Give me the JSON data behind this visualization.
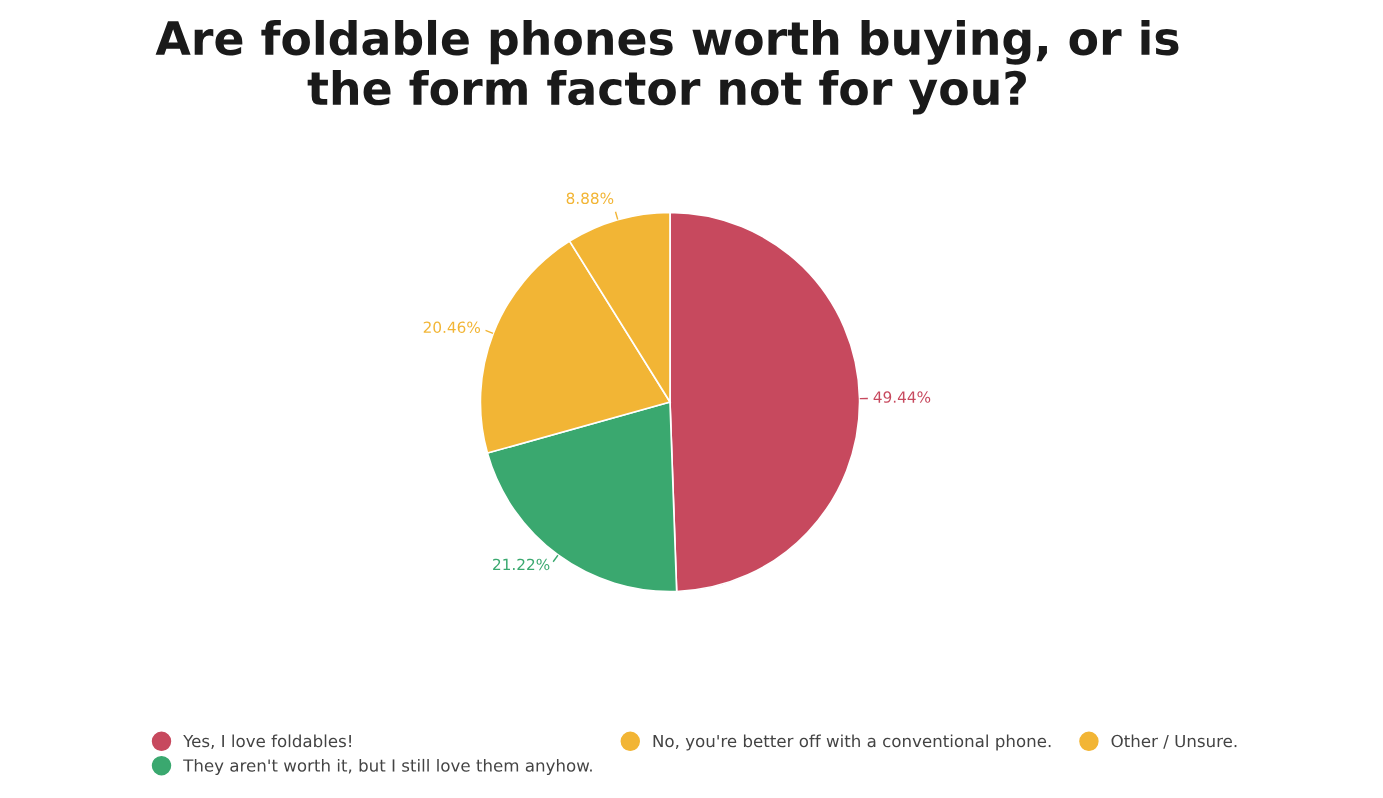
{
  "chart_data": {
    "type": "pie",
    "title": "Are foldable phones worth buying, or is\nthe form factor not for you?",
    "categories": [
      "Yes, I love foldables!",
      "They aren't worth it, but I still love them anyhow.",
      "No, you're better off with a conventional phone.",
      "Other / Unsure."
    ],
    "values": [
      49.44,
      21.22,
      20.46,
      8.88
    ],
    "colors": [
      "#c7495e",
      "#3aa86f",
      "#f2b535",
      "#f2b535"
    ],
    "value_labels": [
      "49.44%",
      "21.22%",
      "20.46%",
      "8.88%"
    ],
    "legend": "bottom"
  }
}
